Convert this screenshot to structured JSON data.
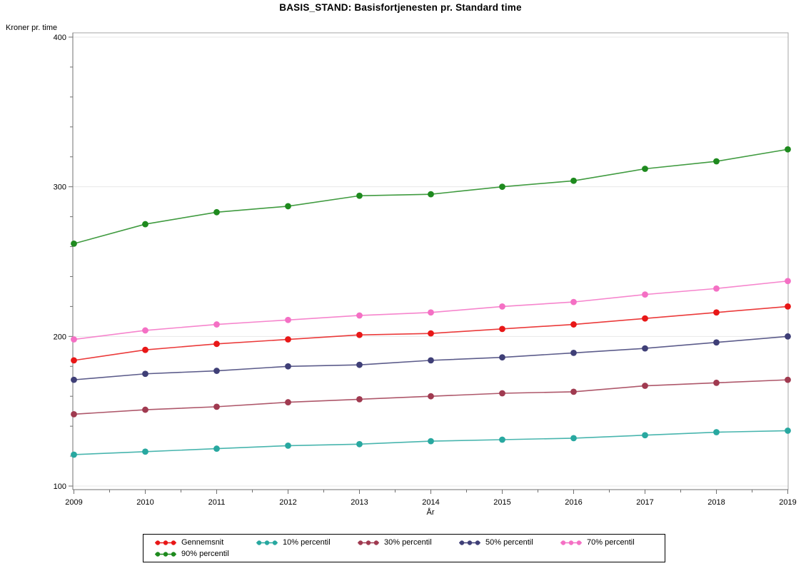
{
  "chart_data": {
    "type": "line",
    "title": "BASIS_STAND: Basisfortjenesten pr. Standard time",
    "xlabel": "År",
    "ylabel": "Kroner pr. time",
    "x": [
      2009,
      2010,
      2011,
      2012,
      2013,
      2014,
      2015,
      2016,
      2017,
      2018,
      2019
    ],
    "ylim": [
      100,
      400
    ],
    "y_major_ticks": [
      100,
      200,
      300,
      400
    ],
    "y_minor_tick_step": 20,
    "grid": true,
    "legend_position": "bottom",
    "legend_rows": [
      [
        0,
        1,
        2,
        3,
        4
      ],
      [
        5
      ]
    ],
    "series": [
      {
        "name": "Gennemsnit",
        "color": "#E81717",
        "values": [
          184,
          191,
          195,
          198,
          201,
          202,
          205,
          208,
          212,
          216,
          220
        ]
      },
      {
        "name": "10% percentil",
        "color": "#28A8A0",
        "values": [
          121,
          123,
          125,
          127,
          128,
          130,
          131,
          132,
          134,
          136,
          137
        ]
      },
      {
        "name": "30% percentil",
        "color": "#A03A50",
        "values": [
          148,
          151,
          153,
          156,
          158,
          160,
          162,
          163,
          167,
          169,
          171
        ]
      },
      {
        "name": "50% percentil",
        "color": "#3F3F77",
        "values": [
          171,
          175,
          177,
          180,
          181,
          184,
          186,
          189,
          192,
          196,
          200
        ]
      },
      {
        "name": "70% percentil",
        "color": "#F470C4",
        "values": [
          198,
          204,
          208,
          211,
          214,
          216,
          220,
          223,
          228,
          232,
          237
        ]
      },
      {
        "name": "90% percentil",
        "color": "#1E8A1E",
        "values": [
          262,
          275,
          283,
          287,
          294,
          295,
          300,
          304,
          312,
          317,
          325
        ]
      }
    ],
    "colors": {
      "frame": "#A6A6A6",
      "axis": "#707070",
      "gridline": "#E8E8E8",
      "text": "#000000"
    }
  }
}
